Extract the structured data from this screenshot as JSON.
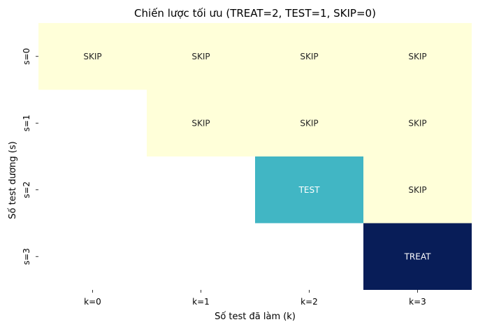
{
  "chart_data": {
    "type": "heatmap",
    "title": "Chiến lược tối ưu (TREAT=2, TEST=1, SKIP=0)",
    "xlabel": "Số test đã làm (k)",
    "ylabel": "Số test dương (s)",
    "x_categories": [
      "k=0",
      "k=1",
      "k=2",
      "k=3"
    ],
    "y_categories": [
      "s=0",
      "s=1",
      "s=2",
      "s=3"
    ],
    "values": [
      [
        0,
        0,
        0,
        0
      ],
      [
        null,
        0,
        0,
        0
      ],
      [
        null,
        null,
        1,
        0
      ],
      [
        null,
        null,
        null,
        2
      ]
    ],
    "labels": [
      [
        "SKIP",
        "SKIP",
        "SKIP",
        "SKIP"
      ],
      [
        "",
        "SKIP",
        "SKIP",
        "SKIP"
      ],
      [
        "",
        "",
        "TEST",
        "SKIP"
      ],
      [
        "",
        "",
        "",
        "TREAT"
      ]
    ],
    "value_names": {
      "0": "SKIP",
      "1": "TEST",
      "2": "TREAT"
    },
    "colors": {
      "0": "#ffffd9",
      "1": "#41b6c4",
      "2": "#081d58"
    },
    "text_colors": {
      "0": "#262626",
      "1": "#ffffff",
      "2": "#ffffff"
    },
    "colorbar": false,
    "grid": false
  }
}
